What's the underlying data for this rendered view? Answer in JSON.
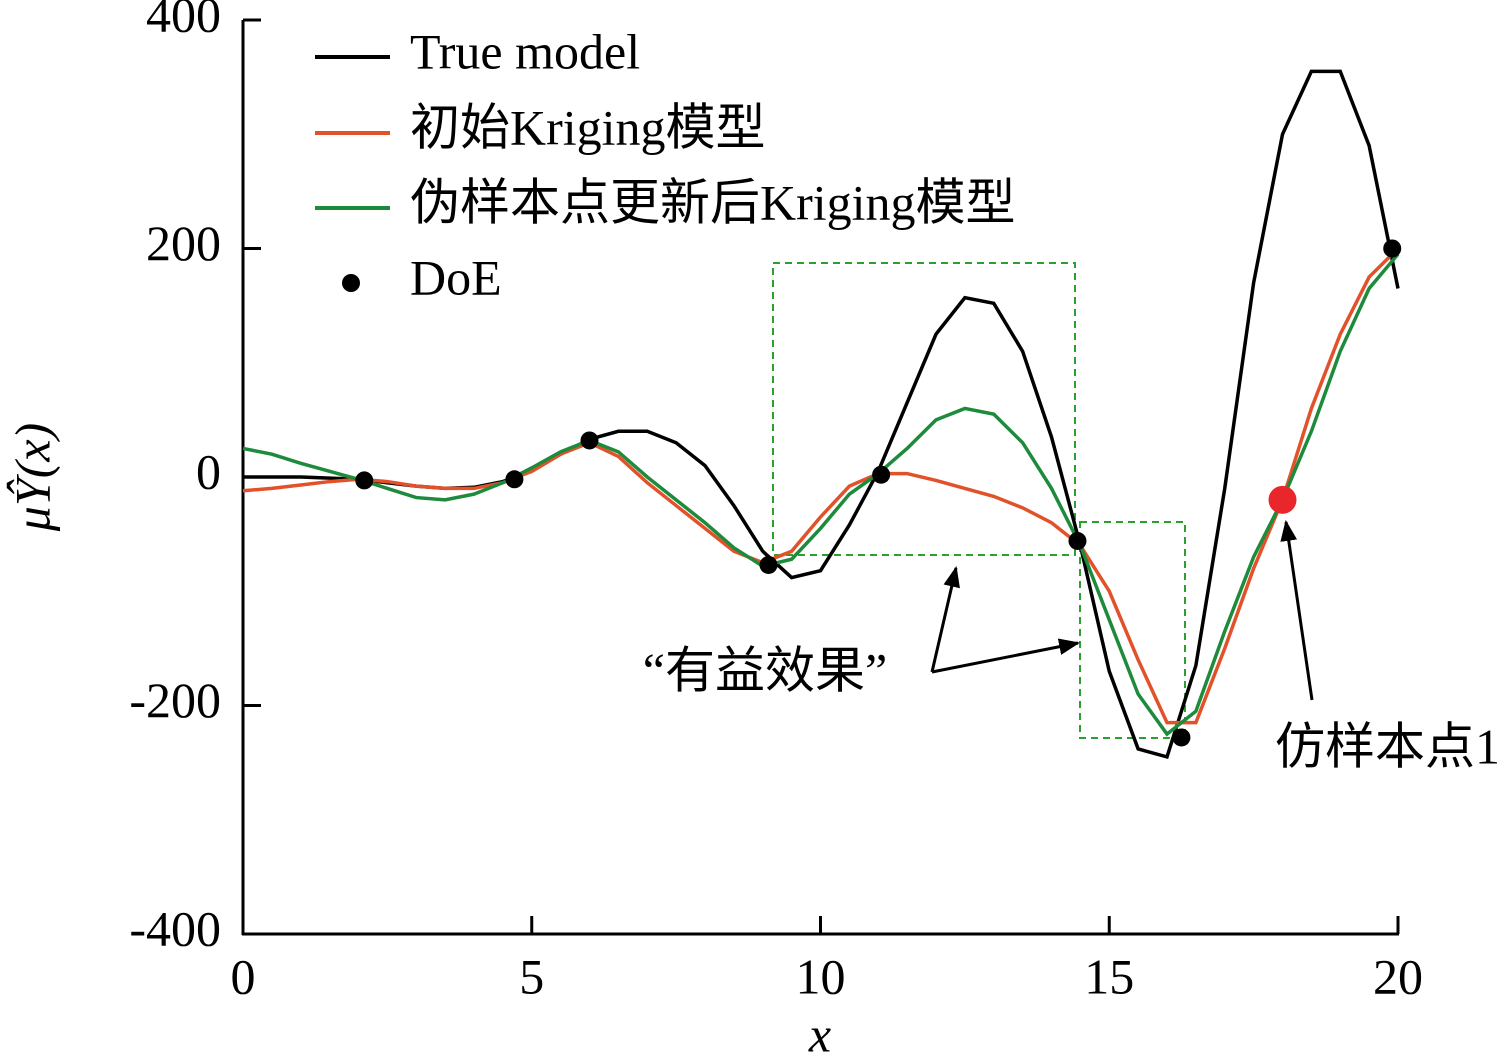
{
  "chart_data": {
    "type": "line",
    "xlabel": "x",
    "ylabel": "μŶ(x)",
    "xlim": [
      0,
      20
    ],
    "ylim": [
      -400,
      400
    ],
    "xticks": [
      0,
      5,
      10,
      15,
      20
    ],
    "yticks": [
      -400,
      -200,
      0,
      200,
      400
    ],
    "x": [
      0,
      0.5,
      1,
      1.5,
      2,
      2.5,
      3,
      3.5,
      4,
      4.5,
      5,
      5.5,
      6,
      6.5,
      7,
      7.5,
      8,
      8.5,
      9,
      9.5,
      10,
      10.5,
      11,
      11.5,
      12,
      12.5,
      13,
      13.5,
      14,
      14.5,
      15,
      15.5,
      16,
      16.5,
      17,
      17.5,
      18,
      18.5,
      19,
      19.5,
      20
    ],
    "series": [
      {
        "name": "True model",
        "color": "#000000",
        "values": [
          0,
          0,
          0,
          -1,
          -2,
          -5,
          -8,
          -10,
          -9,
          -4,
          5,
          20,
          33,
          40,
          40,
          30,
          10,
          -25,
          -65,
          -88,
          -82,
          -42,
          5,
          65,
          125,
          157,
          152,
          110,
          35,
          -60,
          -170,
          -238,
          -245,
          -165,
          -10,
          170,
          300,
          355,
          355,
          290,
          165
        ]
      },
      {
        "name": "初始Kriging模型",
        "color": "#e2522a",
        "values": [
          -12,
          -10,
          -7,
          -4,
          -2,
          -4,
          -8,
          -10,
          -10,
          -5,
          5,
          20,
          30,
          18,
          -5,
          -25,
          -45,
          -65,
          -75,
          -65,
          -35,
          -8,
          3,
          3,
          -3,
          -10,
          -17,
          -27,
          -40,
          -60,
          -100,
          -160,
          -215,
          -215,
          -150,
          -80,
          -20,
          60,
          125,
          175,
          200
        ]
      },
      {
        "name": "伪样本点更新后Kriging模型",
        "color": "#1e8a3c",
        "values": [
          25,
          20,
          12,
          5,
          -2,
          -10,
          -18,
          -20,
          -15,
          -5,
          8,
          22,
          32,
          22,
          0,
          -20,
          -40,
          -62,
          -78,
          -72,
          -45,
          -15,
          3,
          25,
          50,
          60,
          55,
          30,
          -10,
          -60,
          -125,
          -190,
          -225,
          -205,
          -135,
          -70,
          -20,
          40,
          110,
          165,
          195
        ]
      }
    ],
    "doe": {
      "name": "DoE",
      "color": "#000000",
      "x": [
        2.1,
        4.7,
        6,
        9.1,
        11.05,
        14.45,
        16.25,
        19.9
      ],
      "y": [
        -3,
        -2,
        32,
        -77,
        2,
        -56,
        -228,
        200
      ]
    },
    "highlight": {
      "x": 18,
      "y": -20,
      "color": "#e8262b"
    },
    "annotations": [
      "“有益效果”",
      "仿样本点1"
    ]
  }
}
